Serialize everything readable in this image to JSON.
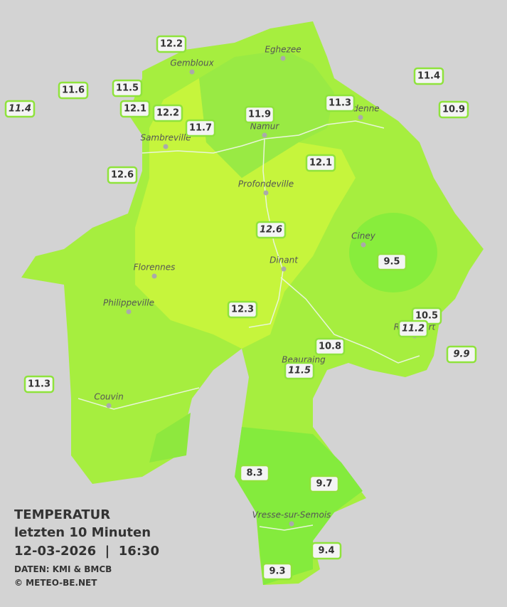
{
  "title": "TEMPERATUR",
  "subtitle": "letzten 10 Minuten",
  "timestamp": "12-03-2026  |  16:30",
  "source": "DATEN: KMI & BMCB",
  "copyright": "© METEO-BE.NET",
  "cities": [
    "Eghezee",
    "Gembloux",
    "Andenne",
    "Namur",
    "Sambreville",
    "Profondeville",
    "Ciney",
    "Dinant",
    "Florennes",
    "Philippeville",
    "Rochefort",
    "Beauraing",
    "Couvin",
    "Vresse-sur-Semois"
  ],
  "stations": [
    {
      "value": 12.2
    },
    {
      "value": 11.6
    },
    {
      "value": 11.5
    },
    {
      "value": 11.4,
      "italic": true
    },
    {
      "value": 12.1
    },
    {
      "value": 12.2
    },
    {
      "value": 11.7
    },
    {
      "value": 11.9
    },
    {
      "value": 11.3
    },
    {
      "value": 11.4
    },
    {
      "value": 10.9
    },
    {
      "value": 12.6
    },
    {
      "value": 12.1
    },
    {
      "value": 12.6,
      "italic": true
    },
    {
      "value": 9.5
    },
    {
      "value": 12.3
    },
    {
      "value": 10.5
    },
    {
      "value": 11.2,
      "italic": true
    },
    {
      "value": 9.9,
      "italic": true
    },
    {
      "value": 10.8
    },
    {
      "value": 11.5,
      "italic": true
    },
    {
      "value": 11.3
    },
    {
      "value": 8.3
    },
    {
      "value": 9.7
    },
    {
      "value": 9.4
    },
    {
      "value": 9.3
    }
  ]
}
